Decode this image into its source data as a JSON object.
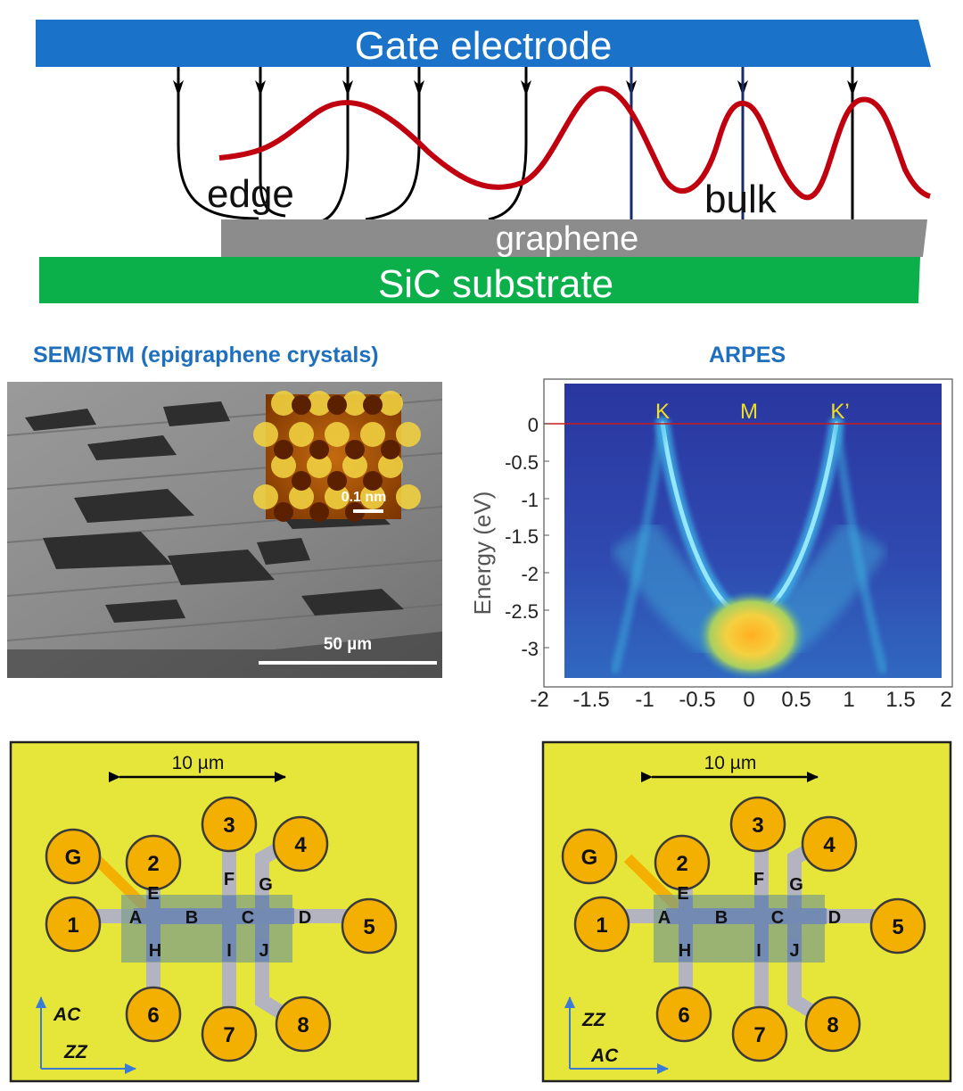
{
  "colors": {
    "gate": "#1a73c9",
    "graphene": "#8c8c8c",
    "substrate": "#0cb04a",
    "wave": "#c0000f",
    "title_blue": "#1f6fbf",
    "device_bg": "#e6e63a",
    "contact": "#f4b000",
    "channel": "#b4b4c0",
    "mesa": "#7a9c8a",
    "gate_lead": "#f4b000",
    "arrow_blue": "#3a7bd5"
  },
  "schematic": {
    "gate_label": "Gate electrode",
    "graphene_label": "graphene",
    "substrate_label": "SiC substrate",
    "edge_label": "edge",
    "bulk_label": "bulk"
  },
  "sem_panel": {
    "title": "SEM/STM (epigraphene crystals)",
    "scale_label": "50 µm",
    "inset_scale_label": "0.1 nm"
  },
  "arpes_panel": {
    "title": "ARPES",
    "ylabel": "Energy (eV)",
    "k_label": "K",
    "m_label": "M",
    "kprime_label": "K’",
    "x_ticks": [
      "-2",
      "-1.5",
      "-1",
      "-0.5",
      "0",
      "0.5",
      "1",
      "1.5",
      "2"
    ],
    "y_ticks": [
      "0",
      "-0.5",
      "-1",
      "-1.5",
      "-2",
      "-2.5",
      "-3"
    ]
  },
  "devices": [
    {
      "scale_label": "10 µm",
      "axis_vertical": "AC",
      "axis_horizontal": "ZZ",
      "contacts": [
        "G",
        "1",
        "2",
        "3",
        "4",
        "5",
        "6",
        "7",
        "8"
      ],
      "nodes": [
        "A",
        "B",
        "C",
        "D",
        "E",
        "F",
        "G",
        "H",
        "I",
        "J"
      ]
    },
    {
      "scale_label": "10 µm",
      "axis_vertical": "ZZ",
      "axis_horizontal": "AC",
      "contacts": [
        "G",
        "1",
        "2",
        "3",
        "4",
        "5",
        "6",
        "7",
        "8"
      ],
      "nodes": [
        "A",
        "B",
        "C",
        "D",
        "E",
        "F",
        "G",
        "H",
        "I",
        "J"
      ]
    }
  ]
}
